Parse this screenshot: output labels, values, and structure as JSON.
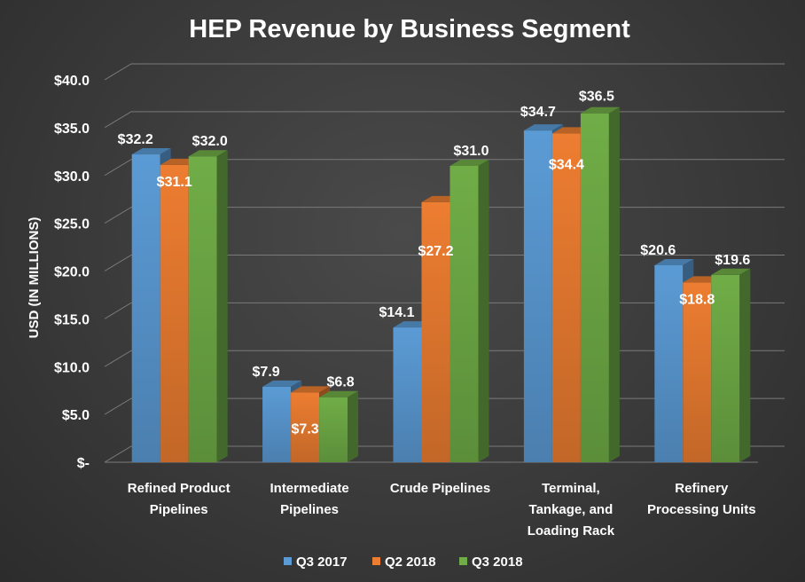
{
  "chart_data": {
    "type": "bar",
    "title": "HEP Revenue by Business Segment",
    "ylabel": "USD (IN MILLIONS)",
    "xlabel": "",
    "ylim": [
      0,
      40
    ],
    "yticks": [
      0,
      5,
      10,
      15,
      20,
      25,
      30,
      35,
      40
    ],
    "ytick_labels": [
      "$-",
      "$5.0",
      "$10.0",
      "$15.0",
      "$20.0",
      "$25.0",
      "$30.0",
      "$35.0",
      "$40.0"
    ],
    "grid": true,
    "legend_position": "bottom",
    "categories": [
      [
        "Refined Product",
        "Pipelines"
      ],
      [
        "Intermediate",
        "Pipelines"
      ],
      [
        "Crude Pipelines"
      ],
      [
        "Terminal,",
        "Tankage, and",
        "Loading Rack"
      ],
      [
        "Refinery",
        "Processing Units"
      ]
    ],
    "series": [
      {
        "name": "Q3 2017",
        "color": "#5b9bd5",
        "values": [
          32.2,
          7.9,
          14.1,
          34.7,
          20.6
        ],
        "labels": [
          "$32.2",
          "$7.9",
          "$14.1",
          "$34.7",
          "$20.6"
        ]
      },
      {
        "name": "Q2 2018",
        "color": "#ed7d31",
        "values": [
          31.1,
          7.3,
          27.2,
          34.4,
          18.8
        ],
        "labels": [
          "$31.1",
          "$7.3",
          "$27.2",
          "$34.4",
          "$18.8"
        ]
      },
      {
        "name": "Q3 2018",
        "color": "#70ad47",
        "values": [
          32.0,
          6.8,
          31.0,
          36.5,
          19.6
        ],
        "labels": [
          "$32.0",
          "$6.8",
          "$31.0",
          "$36.5",
          "$19.6"
        ]
      }
    ]
  }
}
